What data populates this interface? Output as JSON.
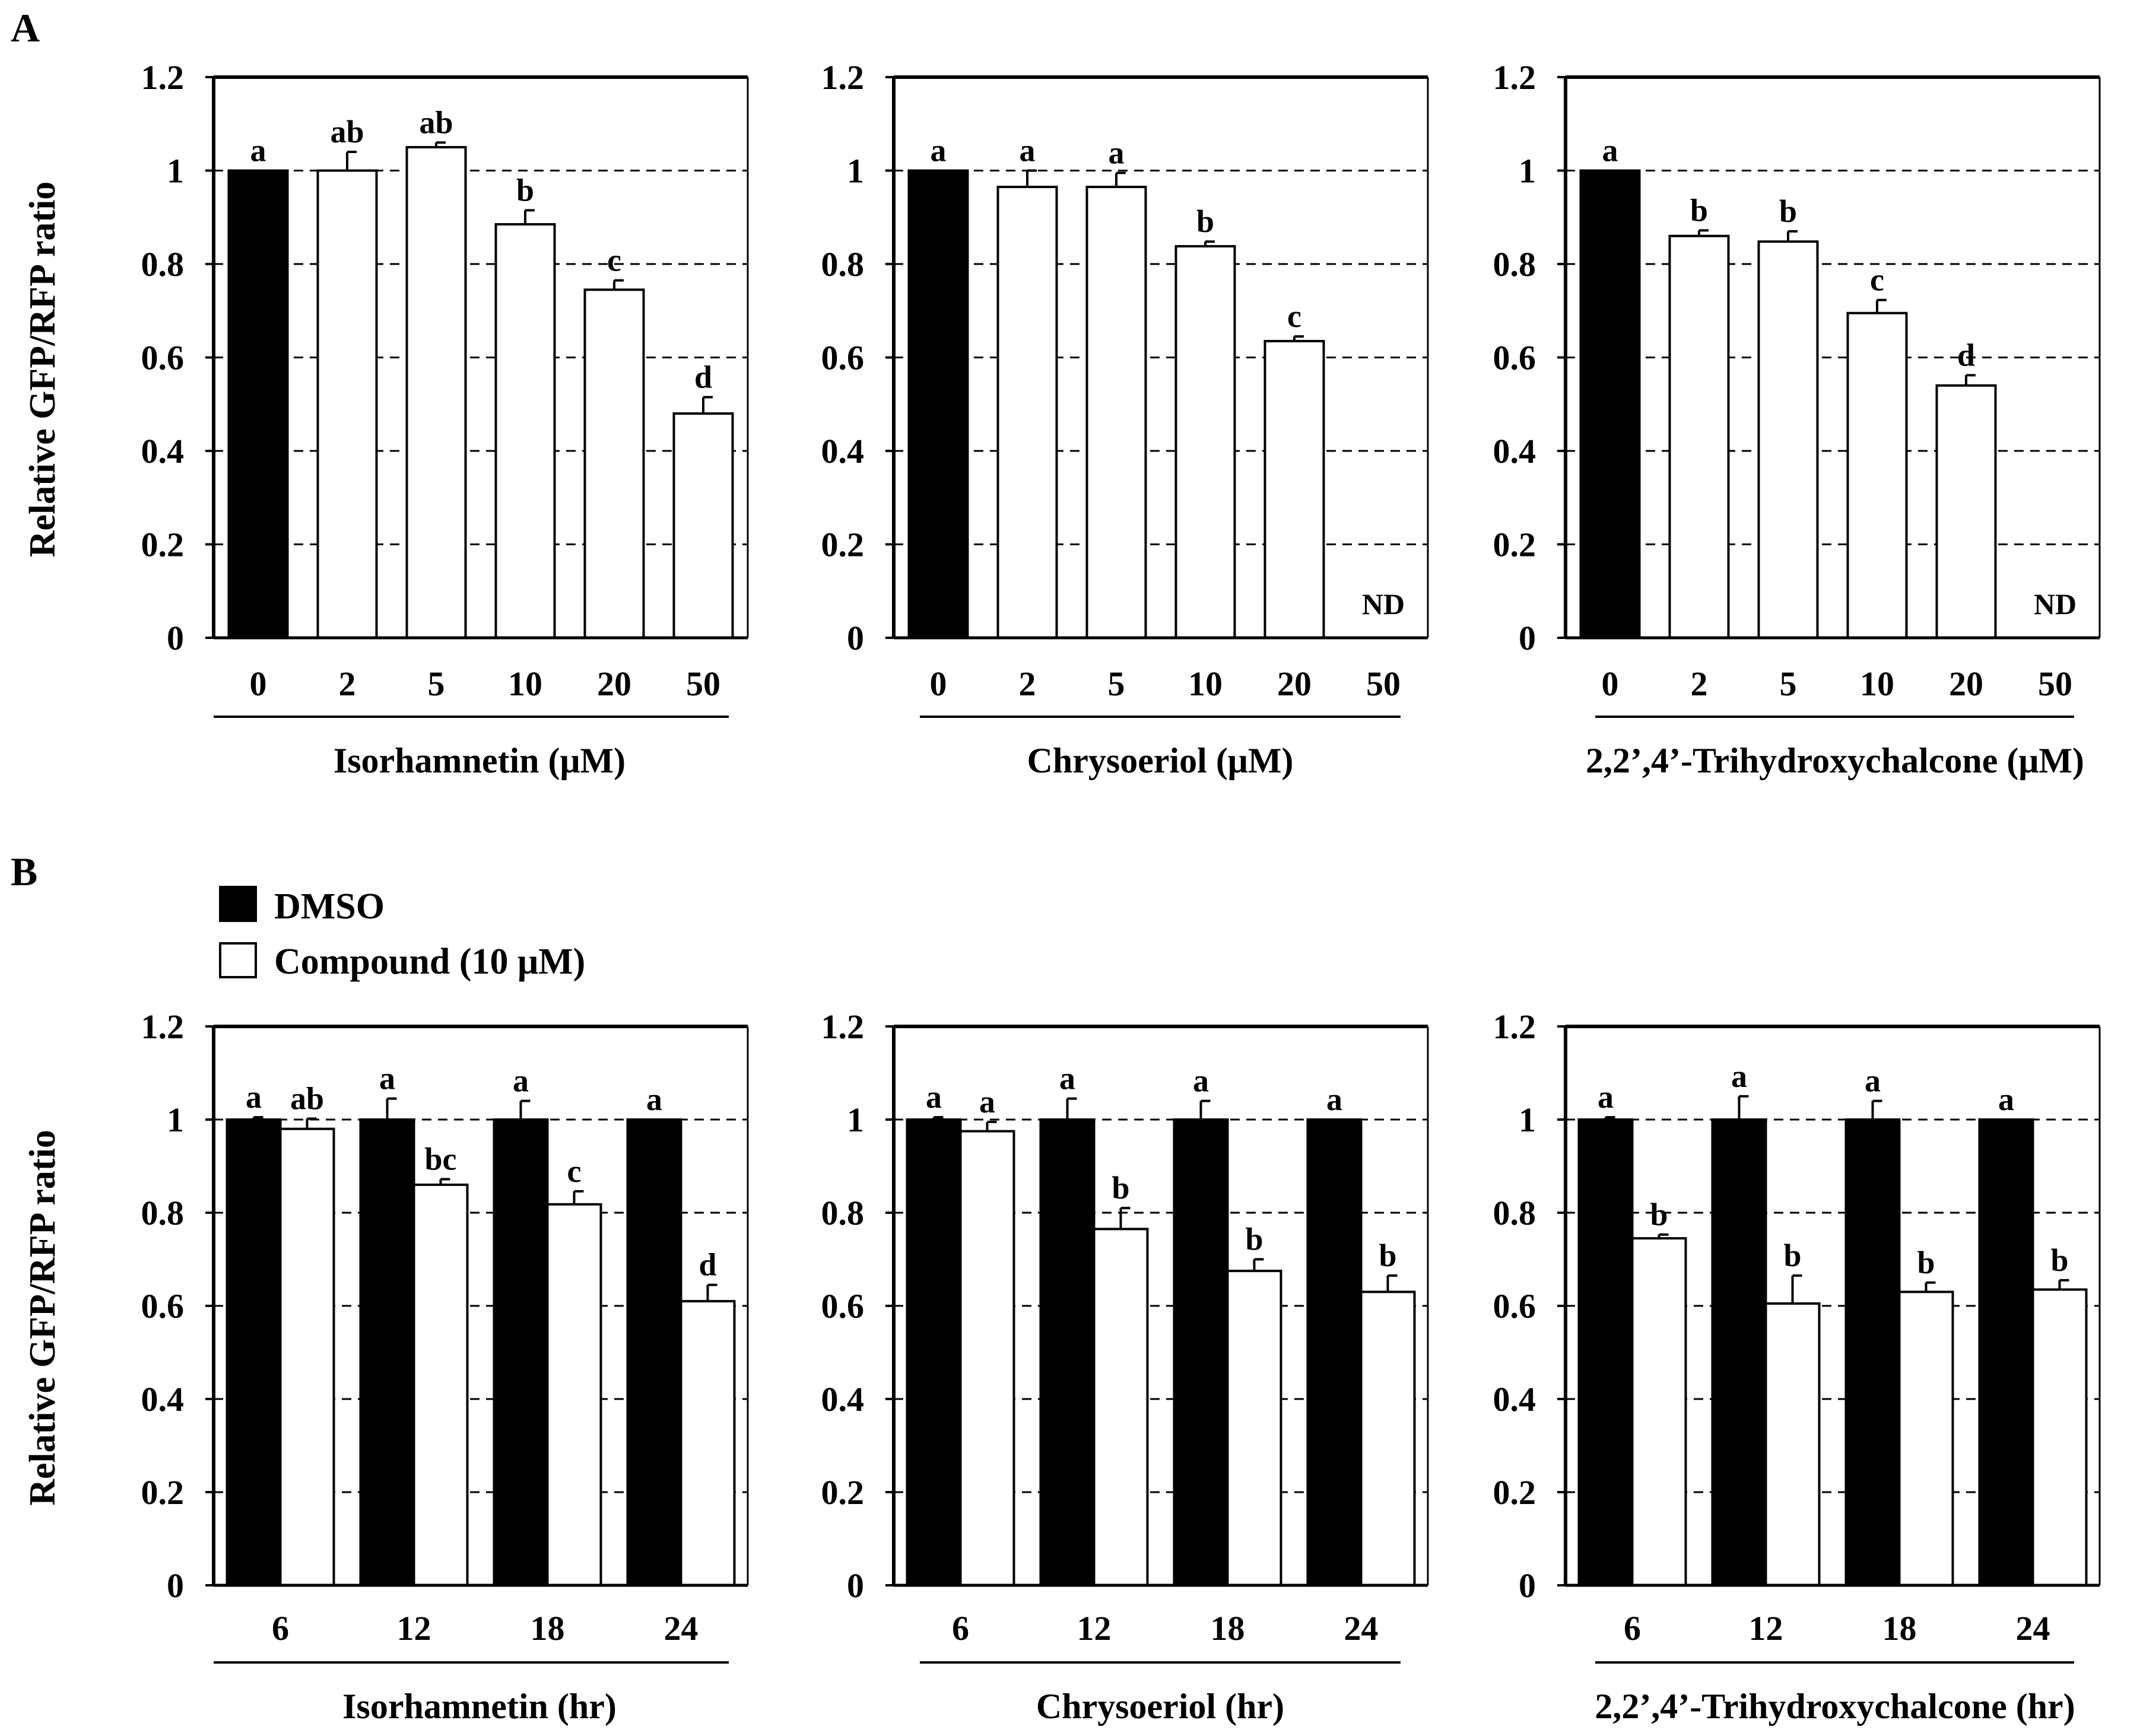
{
  "figure": {
    "panel_labels": [
      "A",
      "B"
    ],
    "legend": {
      "items": [
        {
          "label": "DMSO",
          "fill": "#000000"
        },
        {
          "label": "Compound (10 μM)",
          "fill": "#ffffff"
        }
      ]
    }
  },
  "chart_data": [
    {
      "type": "bar",
      "panel": "A",
      "title": "",
      "xlabel": "Isorhamnetin (μM)",
      "ylabel": "Relative GFP/RFP ratio",
      "ylim": [
        0,
        1.2
      ],
      "yticks": [
        "0",
        "0.2",
        "0.4",
        "0.6",
        "0.8",
        "1",
        "1.2"
      ],
      "grid": "dashed-horizontal",
      "categories": [
        "0",
        "2",
        "5",
        "10",
        "20",
        "50"
      ],
      "values": [
        1.0,
        1.0,
        1.05,
        0.885,
        0.745,
        0.48
      ],
      "errors": [
        0,
        0.04,
        0.01,
        0.03,
        0.02,
        0.035
      ],
      "colors": [
        "#000000",
        "#ffffff",
        "#ffffff",
        "#ffffff",
        "#ffffff",
        "#ffffff"
      ],
      "letters": [
        "a",
        "ab",
        "ab",
        "b",
        "c",
        "d"
      ],
      "nd": [
        false,
        false,
        false,
        false,
        false,
        false
      ],
      "nd_text": "ND"
    },
    {
      "type": "bar",
      "panel": "A",
      "title": "",
      "xlabel": "Chrysoeriol (μM)",
      "ylabel": "",
      "ylim": [
        0,
        1.2
      ],
      "yticks": [
        "0",
        "0.2",
        "0.4",
        "0.6",
        "0.8",
        "1",
        "1.2"
      ],
      "grid": "dashed-horizontal",
      "categories": [
        "0",
        "2",
        "5",
        "10",
        "20",
        "50"
      ],
      "values": [
        1.0,
        0.965,
        0.965,
        0.838,
        0.635,
        0
      ],
      "errors": [
        0,
        0.035,
        0.03,
        0.01,
        0.01,
        0
      ],
      "colors": [
        "#000000",
        "#ffffff",
        "#ffffff",
        "#ffffff",
        "#ffffff",
        "#ffffff"
      ],
      "letters": [
        "a",
        "a",
        "a",
        "b",
        "c",
        ""
      ],
      "nd": [
        false,
        false,
        false,
        false,
        false,
        true
      ],
      "nd_text": "ND"
    },
    {
      "type": "bar",
      "panel": "A",
      "title": "",
      "xlabel": "2,2’,4’-Trihydroxychalcone (μM)",
      "ylabel": "",
      "ylim": [
        0,
        1.2
      ],
      "yticks": [
        "0",
        "0.2",
        "0.4",
        "0.6",
        "0.8",
        "1",
        "1.2"
      ],
      "grid": "dashed-horizontal",
      "categories": [
        "0",
        "2",
        "5",
        "10",
        "20",
        "50"
      ],
      "values": [
        1.0,
        0.86,
        0.848,
        0.695,
        0.54,
        0
      ],
      "errors": [
        0,
        0.012,
        0.022,
        0.028,
        0.022,
        0
      ],
      "colors": [
        "#000000",
        "#ffffff",
        "#ffffff",
        "#ffffff",
        "#ffffff",
        "#ffffff"
      ],
      "letters": [
        "a",
        "b",
        "b",
        "c",
        "d",
        ""
      ],
      "nd": [
        false,
        false,
        false,
        false,
        false,
        true
      ],
      "nd_text": "ND"
    },
    {
      "type": "bar",
      "panel": "B",
      "title": "",
      "xlabel": "Isorhamnetin (hr)",
      "ylabel": "Relative GFP/RFP ratio",
      "ylim": [
        0,
        1.2
      ],
      "yticks": [
        "0",
        "0.2",
        "0.4",
        "0.6",
        "0.8",
        "1",
        "1.2"
      ],
      "grid": "dashed-horizontal",
      "categories": [
        "6",
        "12",
        "18",
        "24"
      ],
      "series": [
        {
          "name": "DMSO",
          "fill": "#000000",
          "values": [
            1.0,
            1.0,
            1.0,
            1.0
          ],
          "errors": [
            0.005,
            0.045,
            0.04,
            0
          ],
          "letters": [
            "a",
            "a",
            "a",
            "a"
          ]
        },
        {
          "name": "Compound (10 μM)",
          "fill": "#ffffff",
          "values": [
            0.98,
            0.86,
            0.818,
            0.61
          ],
          "errors": [
            0.022,
            0.012,
            0.028,
            0.035
          ],
          "letters": [
            "ab",
            "bc",
            "c",
            "d"
          ]
        }
      ]
    },
    {
      "type": "bar",
      "panel": "B",
      "title": "",
      "xlabel": "Chrysoeriol (hr)",
      "ylabel": "",
      "ylim": [
        0,
        1.2
      ],
      "yticks": [
        "0",
        "0.2",
        "0.4",
        "0.6",
        "0.8",
        "1",
        "1.2"
      ],
      "grid": "dashed-horizontal",
      "categories": [
        "6",
        "12",
        "18",
        "24"
      ],
      "series": [
        {
          "name": "DMSO",
          "fill": "#000000",
          "values": [
            1.0,
            1.0,
            1.0,
            1.0
          ],
          "errors": [
            0.005,
            0.045,
            0.04,
            0
          ],
          "letters": [
            "a",
            "a",
            "a",
            "a"
          ]
        },
        {
          "name": "Compound (10 μM)",
          "fill": "#ffffff",
          "values": [
            0.975,
            0.765,
            0.675,
            0.63
          ],
          "errors": [
            0.02,
            0.045,
            0.025,
            0.035
          ],
          "letters": [
            "a",
            "b",
            "b",
            "b"
          ]
        }
      ]
    },
    {
      "type": "bar",
      "panel": "B",
      "title": "",
      "xlabel": "2,2’,4’-Trihydroxychalcone (hr)",
      "ylabel": "",
      "ylim": [
        0,
        1.2
      ],
      "yticks": [
        "0",
        "0.2",
        "0.4",
        "0.6",
        "0.8",
        "1",
        "1.2"
      ],
      "grid": "dashed-horizontal",
      "categories": [
        "6",
        "12",
        "18",
        "24"
      ],
      "series": [
        {
          "name": "DMSO",
          "fill": "#000000",
          "values": [
            1.0,
            1.0,
            1.0,
            1.0
          ],
          "errors": [
            0.005,
            0.05,
            0.04,
            0
          ],
          "letters": [
            "a",
            "a",
            "a",
            "a"
          ]
        },
        {
          "name": "Compound (10 μM)",
          "fill": "#ffffff",
          "values": [
            0.745,
            0.605,
            0.63,
            0.635
          ],
          "errors": [
            0.008,
            0.06,
            0.02,
            0.02
          ],
          "letters": [
            "b",
            "b",
            "b",
            "b"
          ]
        }
      ]
    }
  ]
}
